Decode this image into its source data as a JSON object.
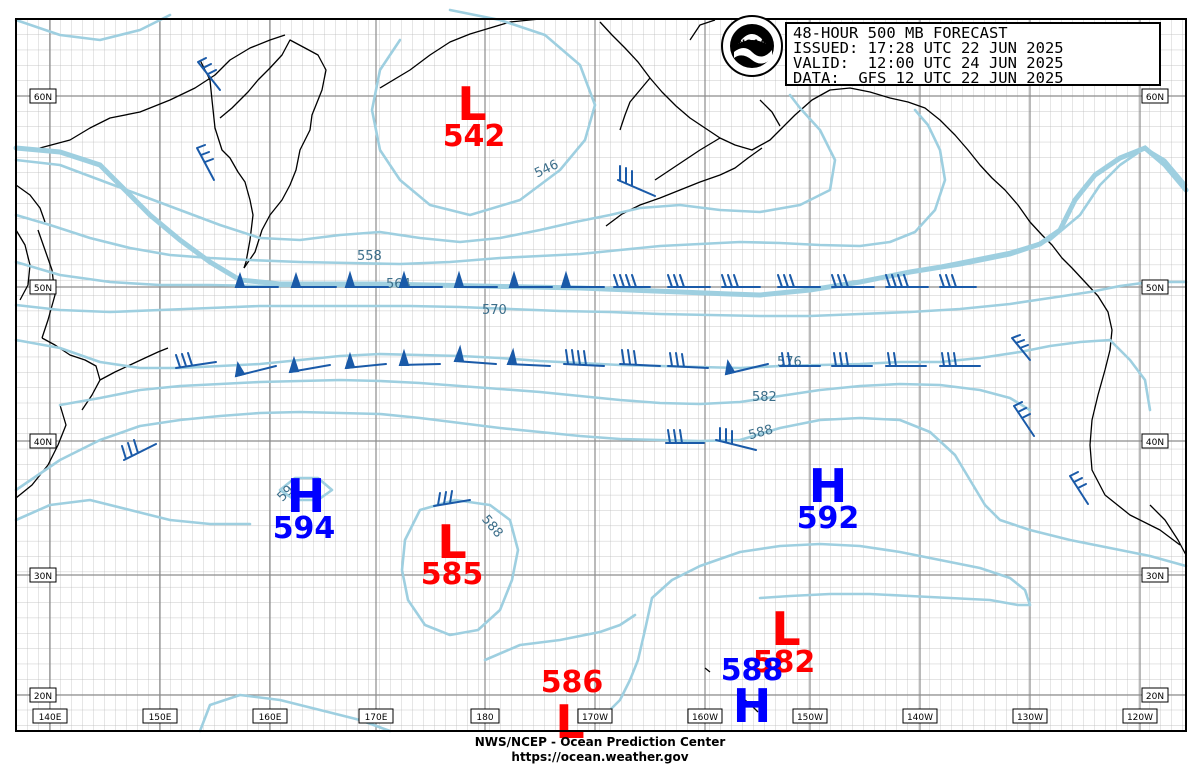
{
  "header": {
    "title": "48-HOUR 500 MB FORECAST",
    "issued": "ISSUED: 17:28 UTC 22 JUN 2025",
    "valid": "VALID:  12:00 UTC 24 JUN 2025",
    "data": "DATA:  GFS 12 UTC 22 JUN 2025",
    "logo_text": "NOAA"
  },
  "footer": {
    "line1": "NWS/NCEP - Ocean Prediction Center",
    "line2": "https://ocean.weather.gov"
  },
  "lat_labels": [
    "60N",
    "50N",
    "40N",
    "30N",
    "20N"
  ],
  "lon_labels": [
    "140E",
    "150E",
    "160E",
    "170E",
    "180",
    "170W",
    "160W",
    "150W",
    "140W",
    "130W",
    "120W"
  ],
  "centers": [
    {
      "type": "L",
      "value": "542",
      "color": "#ff0000"
    },
    {
      "type": "H",
      "value": "594",
      "color": "#0000ff"
    },
    {
      "type": "L",
      "value": "585",
      "color": "#ff0000"
    },
    {
      "type": "H",
      "value": "592",
      "color": "#0000ff"
    },
    {
      "type": "L",
      "value": "582",
      "color": "#ff0000"
    },
    {
      "type": "H",
      "value": "588",
      "color": "#0000ff"
    },
    {
      "type": "L",
      "value": "586",
      "color": "#ff0000"
    }
  ],
  "contour_labels": [
    "546",
    "558",
    "564",
    "570",
    "576",
    "582",
    "588",
    "594",
    "588"
  ],
  "colors": {
    "contour": "#9ecfe0",
    "grid": "#8c8c8c",
    "coast": "#000000",
    "barb": "#1a5aa8",
    "low": "#ff0000",
    "high": "#0000ff"
  }
}
